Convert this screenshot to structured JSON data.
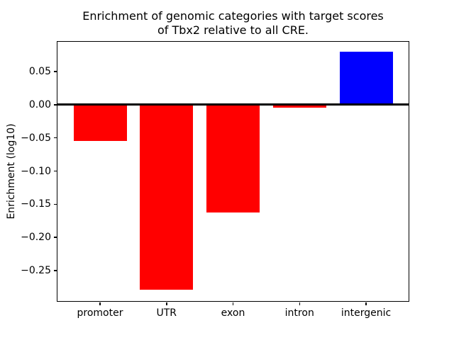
{
  "figure": {
    "title_line1": "Enrichment of genomic categories with target scores",
    "title_line2": "of Tbx2 relative to all CRE."
  },
  "chart_data": {
    "type": "bar",
    "title": "Enrichment of genomic categories with target scores\nof Tbx2 relative to all CRE.",
    "xlabel": "",
    "ylabel": "Enrichment (log10)",
    "categories": [
      "promoter",
      "UTR",
      "exon",
      "intron",
      "intergenic"
    ],
    "values": [
      -0.055,
      -0.279,
      -0.163,
      -0.004,
      0.08
    ],
    "bar_colors": [
      "#ff0000",
      "#ff0000",
      "#ff0000",
      "#ff0000",
      "#0000ff"
    ],
    "bar_width": 0.8,
    "yticks": [
      0.05,
      0.0,
      -0.05,
      -0.1,
      -0.15,
      -0.2,
      -0.25
    ],
    "ytick_labels": [
      "0.05",
      "0.00",
      "−0.05",
      "−0.10",
      "−0.15",
      "−0.20",
      "−0.25"
    ],
    "ylim": [
      -0.296,
      0.095
    ],
    "xlim": [
      -0.64,
      4.64
    ],
    "zero_line": {
      "y": 0.0,
      "color": "#000000"
    },
    "grid": false,
    "legend": null,
    "colors": {
      "negative_bar": "#ff0000",
      "positive_bar": "#0000ff",
      "axis": "#000000",
      "background": "#ffffff"
    }
  }
}
